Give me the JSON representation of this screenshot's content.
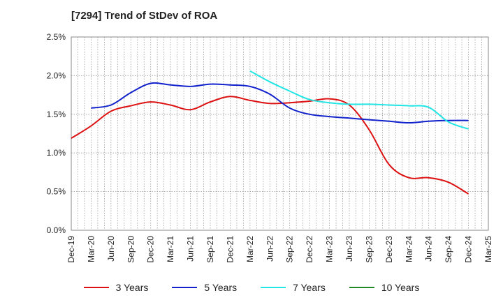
{
  "title": "[7294]  Trend of StDev of ROA",
  "chart_data": {
    "type": "line",
    "title": "[7294]  Trend of StDev of ROA",
    "xlabel": "",
    "ylabel": "",
    "x_ticks": [
      "Dec-19",
      "Mar-20",
      "Jun-20",
      "Sep-20",
      "Dec-20",
      "Mar-21",
      "Jun-21",
      "Sep-21",
      "Dec-21",
      "Mar-22",
      "Jun-22",
      "Sep-22",
      "Dec-22",
      "Mar-23",
      "Jun-23",
      "Sep-23",
      "Dec-23",
      "Mar-24",
      "Jun-24",
      "Sep-24",
      "Dec-24",
      "Mar-25"
    ],
    "y_ticks": [
      "0.0%",
      "0.5%",
      "1.0%",
      "1.5%",
      "2.0%",
      "2.5%"
    ],
    "ylim": [
      0,
      2.5
    ],
    "grid": true,
    "legend_position": "bottom",
    "series": [
      {
        "name": "3 Years",
        "color": "#dd1111",
        "points": [
          [
            "Dec-19",
            1.19
          ],
          [
            "Mar-20",
            1.35
          ],
          [
            "Jun-20",
            1.54
          ],
          [
            "Sep-20",
            1.61
          ],
          [
            "Dec-20",
            1.66
          ],
          [
            "Mar-21",
            1.62
          ],
          [
            "Jun-21",
            1.56
          ],
          [
            "Sep-21",
            1.66
          ],
          [
            "Dec-21",
            1.73
          ],
          [
            "Mar-22",
            1.68
          ],
          [
            "Jun-22",
            1.64
          ],
          [
            "Sep-22",
            1.65
          ],
          [
            "Dec-22",
            1.67
          ],
          [
            "Mar-23",
            1.7
          ],
          [
            "Jun-23",
            1.62
          ],
          [
            "Sep-23",
            1.3
          ],
          [
            "Dec-23",
            0.85
          ],
          [
            "Mar-24",
            0.68
          ],
          [
            "Jun-24",
            0.68
          ],
          [
            "Sep-24",
            0.62
          ],
          [
            "Dec-24",
            0.47
          ]
        ]
      },
      {
        "name": "5 Years",
        "color": "#1122cc",
        "points": [
          [
            "Mar-20",
            1.58
          ],
          [
            "Jun-20",
            1.62
          ],
          [
            "Sep-20",
            1.78
          ],
          [
            "Dec-20",
            1.9
          ],
          [
            "Mar-21",
            1.88
          ],
          [
            "Jun-21",
            1.86
          ],
          [
            "Sep-21",
            1.89
          ],
          [
            "Dec-21",
            1.88
          ],
          [
            "Mar-22",
            1.86
          ],
          [
            "Jun-22",
            1.76
          ],
          [
            "Sep-22",
            1.58
          ],
          [
            "Dec-22",
            1.5
          ],
          [
            "Mar-23",
            1.47
          ],
          [
            "Jun-23",
            1.45
          ],
          [
            "Sep-23",
            1.43
          ],
          [
            "Dec-23",
            1.41
          ],
          [
            "Mar-24",
            1.39
          ],
          [
            "Jun-24",
            1.41
          ],
          [
            "Sep-24",
            1.42
          ],
          [
            "Dec-24",
            1.42
          ]
        ]
      },
      {
        "name": "7 Years",
        "color": "#22e5e5",
        "points": [
          [
            "Mar-22",
            2.06
          ],
          [
            "Jun-22",
            1.92
          ],
          [
            "Sep-22",
            1.8
          ],
          [
            "Dec-22",
            1.69
          ],
          [
            "Mar-23",
            1.65
          ],
          [
            "Jun-23",
            1.63
          ],
          [
            "Sep-23",
            1.63
          ],
          [
            "Dec-23",
            1.62
          ],
          [
            "Mar-24",
            1.61
          ],
          [
            "Jun-24",
            1.59
          ],
          [
            "Sep-24",
            1.4
          ],
          [
            "Dec-24",
            1.31
          ]
        ]
      },
      {
        "name": "10 Years",
        "color": "#228822",
        "points": []
      }
    ]
  }
}
